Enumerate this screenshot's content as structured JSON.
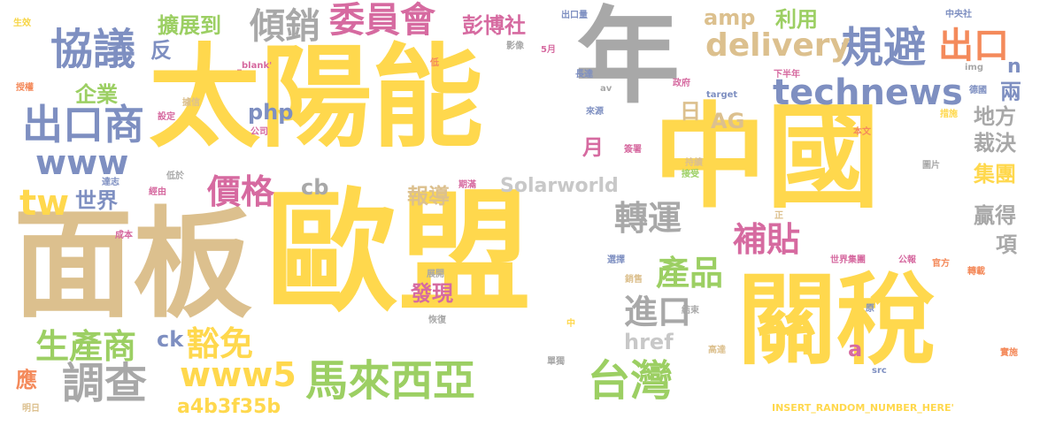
{
  "colors": {
    "yellow": "#f7d544",
    "gold": "#ffd84d",
    "tan": "#dcc08e",
    "gray": "#a8a8a8",
    "blue": "#7e8fc1",
    "green": "#9ccf63",
    "pink": "#d66aa0",
    "orange": "#f48a5b",
    "lightgray": "#c8c8c8"
  },
  "words": [
    {
      "text": "歐盟",
      "color": "#ffd84d"
    },
    {
      "text": "中國",
      "color": "#ffd84d"
    },
    {
      "text": "太陽能",
      "color": "#ffd84d"
    },
    {
      "text": "面板",
      "color": "#dcc08e"
    },
    {
      "text": "年",
      "color": "#a8a8a8"
    },
    {
      "text": "關稅",
      "color": "#ffd84d"
    },
    {
      "text": "協議",
      "color": "#7e8fc1"
    },
    {
      "text": "規避",
      "color": "#7e8fc1"
    },
    {
      "text": "technews",
      "color": "#7e8fc1"
    },
    {
      "text": "delivery",
      "color": "#dcc08e"
    },
    {
      "text": "出口商",
      "color": "#7e8fc1"
    },
    {
      "text": "馬來西亞",
      "color": "#9ccf63"
    },
    {
      "text": "台灣",
      "color": "#9ccf63"
    },
    {
      "text": "調查",
      "color": "#a8a8a8"
    },
    {
      "text": "www5",
      "color": "#ffd84d"
    },
    {
      "text": "www",
      "color": "#7e8fc1"
    },
    {
      "text": "委員會",
      "color": "#d66aa0"
    },
    {
      "text": "傾銷",
      "color": "#a8a8a8"
    },
    {
      "text": "價格",
      "color": "#d66aa0"
    },
    {
      "text": "轉運",
      "color": "#a8a8a8"
    },
    {
      "text": "補貼",
      "color": "#d66aa0"
    },
    {
      "text": "產品",
      "color": "#9ccf63"
    },
    {
      "text": "進口",
      "color": "#a8a8a8"
    },
    {
      "text": "生產商",
      "color": "#9ccf63"
    },
    {
      "text": "豁免",
      "color": "#ffd84d"
    },
    {
      "text": "tw",
      "color": "#ffd84d"
    },
    {
      "text": "出口",
      "color": "#f48a5b"
    },
    {
      "text": "Solarworld",
      "color": "#c8c8c8"
    },
    {
      "text": "a4b3f35b",
      "color": "#ffd84d"
    },
    {
      "text": "擴展到",
      "color": "#9ccf63"
    },
    {
      "text": "彭博社",
      "color": "#d66aa0"
    },
    {
      "text": "利用",
      "color": "#9ccf63"
    },
    {
      "text": "amp",
      "color": "#dcc08e"
    },
    {
      "text": "企業",
      "color": "#9ccf63"
    },
    {
      "text": "世界",
      "color": "#7e8fc1"
    },
    {
      "text": "php",
      "color": "#7e8fc1"
    },
    {
      "text": "AG",
      "color": "#dcc08e"
    },
    {
      "text": "cb",
      "color": "#a8a8a8"
    },
    {
      "text": "報導",
      "color": "#dcc08e"
    },
    {
      "text": "發現",
      "color": "#d66aa0"
    },
    {
      "text": "ck",
      "color": "#7e8fc1"
    },
    {
      "text": "href",
      "color": "#c8c8c8"
    },
    {
      "text": "地方",
      "color": "#a8a8a8"
    },
    {
      "text": "裁決",
      "color": "#a8a8a8"
    },
    {
      "text": "集團",
      "color": "#ffd84d"
    },
    {
      "text": "贏得",
      "color": "#a8a8a8"
    },
    {
      "text": "項",
      "color": "#a8a8a8"
    },
    {
      "text": "應",
      "color": "#f48a5b"
    },
    {
      "text": "反",
      "color": "#7e8fc1"
    },
    {
      "text": "月",
      "color": "#d66aa0"
    },
    {
      "text": "日",
      "color": "#dcc08e"
    },
    {
      "text": "兩",
      "color": "#7e8fc1"
    },
    {
      "text": "n",
      "color": "#7e8fc1"
    },
    {
      "text": "a",
      "color": "#d66aa0"
    },
    {
      "text": "生效",
      "color": "#f7d544"
    },
    {
      "text": "授權",
      "color": "#f48a5b"
    },
    {
      "text": "出口量",
      "color": "#7e8fc1"
    },
    {
      "text": "中央社",
      "color": "#7e8fc1"
    },
    {
      "text": "_blank'",
      "color": "#d66aa0"
    },
    {
      "text": "影像",
      "color": "#a8a8a8"
    },
    {
      "text": "5月",
      "color": "#d66aa0"
    },
    {
      "text": "低",
      "color": "#f48a5b"
    },
    {
      "text": "長達",
      "color": "#7e8fc1"
    },
    {
      "text": "政府",
      "color": "#d66aa0"
    },
    {
      "text": "下半年",
      "color": "#d66aa0"
    },
    {
      "text": "img",
      "color": "#a8a8a8"
    },
    {
      "text": "德國",
      "color": "#7e8fc1"
    },
    {
      "text": "av",
      "color": "#a8a8a8"
    },
    {
      "text": "target",
      "color": "#7e8fc1"
    },
    {
      "text": "來源",
      "color": "#7e8fc1"
    },
    {
      "text": "據信",
      "color": "#dcc08e"
    },
    {
      "text": "設定",
      "color": "#d66aa0"
    },
    {
      "text": "公司",
      "color": "#d66aa0"
    },
    {
      "text": "措施",
      "color": "#ffd84d"
    },
    {
      "text": "本文",
      "color": "#f48a5b"
    },
    {
      "text": "簽署",
      "color": "#d66aa0"
    },
    {
      "text": "持續",
      "color": "#dcc08e"
    },
    {
      "text": "接受",
      "color": "#9ccf63"
    },
    {
      "text": "圖片",
      "color": "#a8a8a8"
    },
    {
      "text": "低於",
      "color": "#a8a8a8"
    },
    {
      "text": "經由",
      "color": "#d66aa0"
    },
    {
      "text": "達志",
      "color": "#7e8fc1"
    },
    {
      "text": "期滿",
      "color": "#d66aa0"
    },
    {
      "text": "正",
      "color": "#dcc08e"
    },
    {
      "text": "成本",
      "color": "#d66aa0"
    },
    {
      "text": "公報",
      "color": "#d66aa0"
    },
    {
      "text": "世界集團",
      "color": "#d66aa0"
    },
    {
      "text": "官方",
      "color": "#f48a5b"
    },
    {
      "text": "轉載",
      "color": "#f48a5b"
    },
    {
      "text": "展開",
      "color": "#a8a8a8"
    },
    {
      "text": "選擇",
      "color": "#7e8fc1"
    },
    {
      "text": "銷售",
      "color": "#dcc08e"
    },
    {
      "text": "結束",
      "color": "#a8a8a8"
    },
    {
      "text": "恢復",
      "color": "#a8a8a8"
    },
    {
      "text": "中",
      "color": "#ffd84d"
    },
    {
      "text": "原",
      "color": "#7e8fc1"
    },
    {
      "text": "高達",
      "color": "#dcc08e"
    },
    {
      "text": "實施",
      "color": "#f48a5b"
    },
    {
      "text": "單獨",
      "color": "#a8a8a8"
    },
    {
      "text": "src",
      "color": "#7e8fc1"
    },
    {
      "text": "INSERT_RANDOM_NUMBER_HERE'",
      "color": "#ffd84d"
    },
    {
      "text": "明日",
      "color": "#dcc08e"
    }
  ]
}
